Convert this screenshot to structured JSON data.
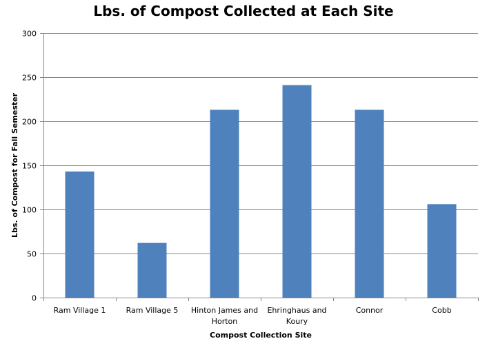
{
  "chart_data": {
    "type": "bar",
    "title": "Lbs. of Compost Collected at Each Site",
    "xlabel": "Compost Collection Site",
    "ylabel": "Lbs. of Compost for Fall Semester",
    "categories": [
      [
        "Ram Village 1"
      ],
      [
        "Ram Village 5"
      ],
      [
        "Hinton James and",
        "Horton"
      ],
      [
        "Ehringhaus and",
        "Koury"
      ],
      [
        "Connor"
      ],
      [
        "Cobb"
      ]
    ],
    "values": [
      143,
      62,
      213,
      241,
      213,
      106
    ],
    "ylim": [
      0,
      300
    ],
    "yticks": [
      0,
      50,
      100,
      150,
      200,
      250,
      300
    ],
    "grid": true,
    "legend": "none",
    "bar_color": "#4f81bd",
    "grid_color": "#868686"
  }
}
